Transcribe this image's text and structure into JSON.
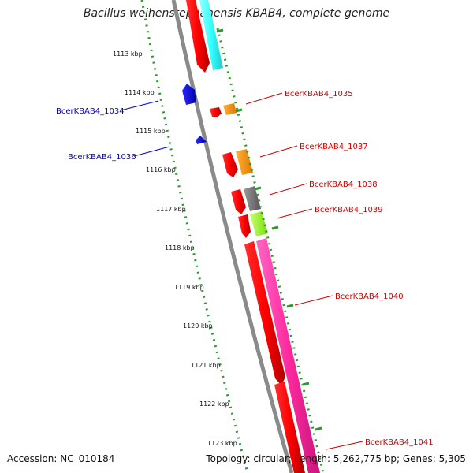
{
  "title": "Bacillus weihenstephanensis KBAB4, complete genome",
  "footer": {
    "accession": "Accession: NC_010184",
    "topology": "Topology: circular; Length: 5,262,775 bp; Genes: 5,305"
  },
  "ruler_ticks": [
    {
      "label": "1113 kbp",
      "position_kbp": 1113
    },
    {
      "label": "1114 kbp",
      "position_kbp": 1114
    },
    {
      "label": "1115 kbp",
      "position_kbp": 1115
    },
    {
      "label": "1116 kbp",
      "position_kbp": 1116
    },
    {
      "label": "1117 kbp",
      "position_kbp": 1117
    },
    {
      "label": "1118 kbp",
      "position_kbp": 1118
    },
    {
      "label": "1119 kbp",
      "position_kbp": 1119
    },
    {
      "label": "1120 kbp",
      "position_kbp": 1120
    },
    {
      "label": "1121 kbp",
      "position_kbp": 1121
    },
    {
      "label": "1122 kbp",
      "position_kbp": 1122
    },
    {
      "label": "1123 kbp",
      "position_kbp": 1123
    }
  ],
  "gene_labels": [
    {
      "name": "BcerKBAB4_1034",
      "strand": "reverse",
      "color": "#0000cc"
    },
    {
      "name": "BcerKBAB4_1035",
      "strand": "forward",
      "color": "#cc0000"
    },
    {
      "name": "BcerKBAB4_1036",
      "strand": "reverse",
      "color": "#0000cc"
    },
    {
      "name": "BcerKBAB4_1037",
      "strand": "forward",
      "color": "#cc0000"
    },
    {
      "name": "BcerKBAB4_1038",
      "strand": "forward",
      "color": "#cc0000"
    },
    {
      "name": "BcerKBAB4_1039",
      "strand": "forward",
      "color": "#cc0000"
    },
    {
      "name": "BcerKBAB4_1040",
      "strand": "forward",
      "color": "#cc0000"
    },
    {
      "name": "BcerKBAB4_1041",
      "strand": "forward",
      "color": "#cc0000"
    }
  ],
  "colors": {
    "forward_cds": "#ff0000",
    "reverse_cds": "#0000ff",
    "backbone": "#909090",
    "ruler": "#2a9a2a",
    "cog_cyan": "#33ffff",
    "cog_orange": "#ff9900",
    "cog_gray": "#777777",
    "cog_lime": "#99ff33",
    "cog_magenta": "#ff33aa"
  }
}
